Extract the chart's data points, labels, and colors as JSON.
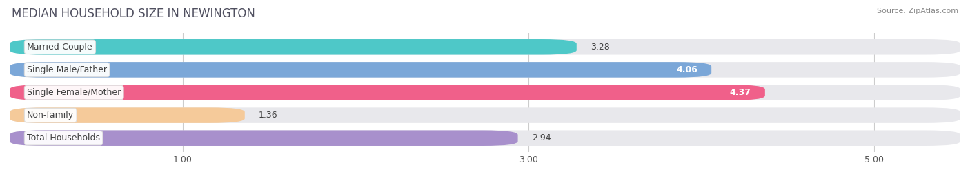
{
  "title": "MEDIAN HOUSEHOLD SIZE IN NEWINGTON",
  "source": "Source: ZipAtlas.com",
  "categories": [
    "Married-Couple",
    "Single Male/Father",
    "Single Female/Mother",
    "Non-family",
    "Total Households"
  ],
  "values": [
    3.28,
    4.06,
    4.37,
    1.36,
    2.94
  ],
  "bar_colors": [
    "#4EC8C8",
    "#7BA7D8",
    "#F0608A",
    "#F5CA9A",
    "#A890CC"
  ],
  "bar_edge_colors": [
    "#3ABABA",
    "#6A90C8",
    "#E05080",
    "#E5B880",
    "#9878BC"
  ],
  "value_colors": [
    "#333333",
    "white",
    "white",
    "#333333",
    "#333333"
  ],
  "xlim_min": 0.0,
  "xlim_max": 5.5,
  "xticks": [
    1.0,
    3.0,
    5.0
  ],
  "xtick_labels": [
    "1.00",
    "3.00",
    "5.00"
  ],
  "bg_color": "#ffffff",
  "bar_bg_color": "#e8e8ec",
  "title_fontsize": 12,
  "label_fontsize": 9,
  "value_fontsize": 9,
  "title_color": "#505060",
  "source_color": "#888888"
}
